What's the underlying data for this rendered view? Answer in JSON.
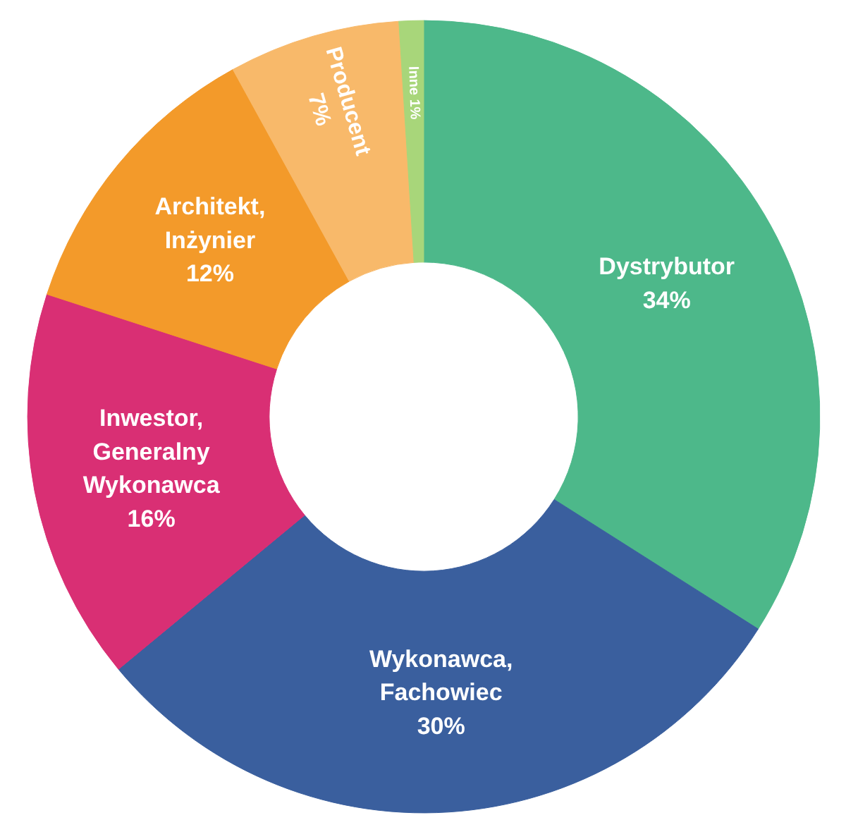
{
  "chart_data": {
    "type": "donut",
    "categories": [
      "Dystrybutor",
      "Wykonawca,\nFachowiec",
      "Inwestor,\nGeneralny\nWykonawca",
      "Architekt,\nInżynier",
      "Producent",
      "Inne"
    ],
    "values": [
      34,
      30,
      16,
      12,
      7,
      1
    ],
    "value_labels": [
      "34%",
      "30%",
      "16%",
      "12%",
      "7%",
      "1%"
    ],
    "colors": [
      "#4db88a",
      "#3a5f9e",
      "#d92f74",
      "#f39a2a",
      "#f8b96a",
      "#a8d67a"
    ]
  }
}
